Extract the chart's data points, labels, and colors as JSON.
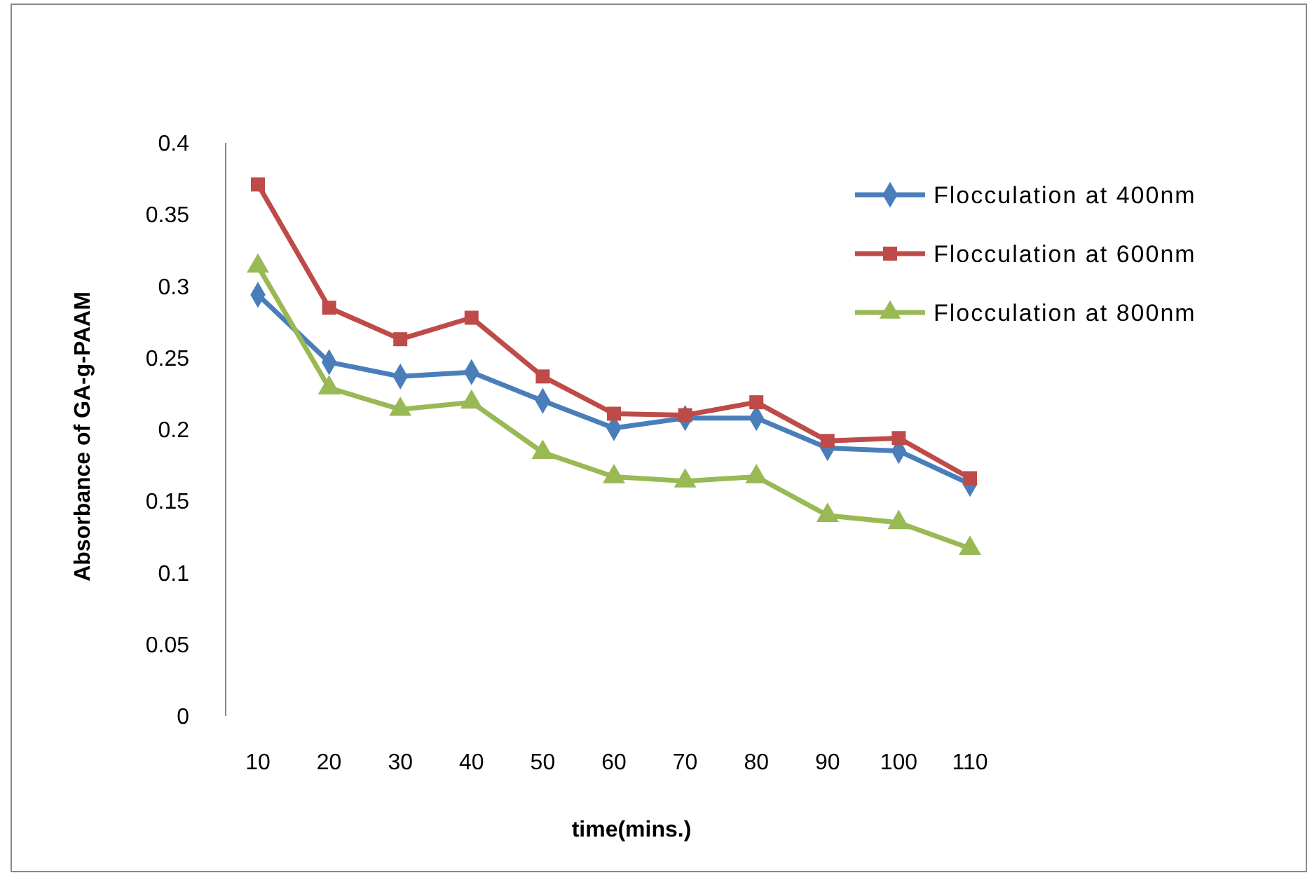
{
  "chart_data": {
    "type": "line",
    "xlabel": "time(mins.)",
    "ylabel": "Absorbance of GA-g-PAAM",
    "categories": [
      "10",
      "20",
      "30",
      "40",
      "50",
      "60",
      "70",
      "80",
      "90",
      "100",
      "110"
    ],
    "series": [
      {
        "name": "Flocculation at 400nm",
        "color": "#4a7ebb",
        "marker": "diamond",
        "values": [
          0.294,
          0.247,
          0.237,
          0.24,
          0.22,
          0.201,
          0.208,
          0.208,
          0.187,
          0.185,
          0.162
        ]
      },
      {
        "name": "Flocculation at 600nm",
        "color": "#be4b48",
        "marker": "square",
        "values": [
          0.371,
          0.285,
          0.263,
          0.278,
          0.237,
          0.211,
          0.21,
          0.219,
          0.192,
          0.194,
          0.166
        ]
      },
      {
        "name": "Flocculation at 800nm",
        "color": "#98b954",
        "marker": "triangle",
        "values": [
          0.314,
          0.229,
          0.214,
          0.219,
          0.184,
          0.167,
          0.164,
          0.167,
          0.14,
          0.135,
          0.117
        ]
      }
    ],
    "ylim": [
      0,
      0.4
    ],
    "yticks": [
      0,
      0.05,
      0.1,
      0.15,
      0.2,
      0.25,
      0.3,
      0.35,
      0.4
    ],
    "grid": false,
    "legend": "top right"
  }
}
